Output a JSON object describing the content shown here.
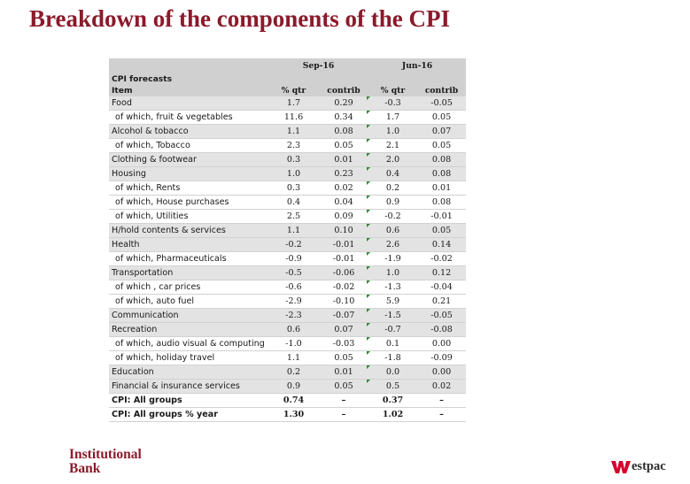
{
  "title": "Breakdown of the components of the CPI",
  "table": {
    "period1": "Sep-16",
    "period2": "Jun-16",
    "section": "CPI forecasts",
    "col_item": "Item",
    "col_qtr": "% qtr",
    "col_contrib": "contrib",
    "rows": [
      {
        "label": "Food",
        "sep_qtr": "1.7",
        "sep_contrib": "0.29",
        "jun_qtr": "-0.3",
        "jun_contrib": "-0.05",
        "kind": "major"
      },
      {
        "label": "of which, fruit & vegetables",
        "sep_qtr": "11.6",
        "sep_contrib": "0.34",
        "jun_qtr": "1.7",
        "jun_contrib": "0.05",
        "kind": "minor"
      },
      {
        "label": "Alcohol & tobacco",
        "sep_qtr": "1.1",
        "sep_contrib": "0.08",
        "jun_qtr": "1.0",
        "jun_contrib": "0.07",
        "kind": "major"
      },
      {
        "label": "of which, Tobacco",
        "sep_qtr": "2.3",
        "sep_contrib": "0.05",
        "jun_qtr": "2.1",
        "jun_contrib": "0.05",
        "kind": "minor"
      },
      {
        "label": "Clothing & footwear",
        "sep_qtr": "0.3",
        "sep_contrib": "0.01",
        "jun_qtr": "2.0",
        "jun_contrib": "0.08",
        "kind": "major"
      },
      {
        "label": "Housing",
        "sep_qtr": "1.0",
        "sep_contrib": "0.23",
        "jun_qtr": "0.4",
        "jun_contrib": "0.08",
        "kind": "major"
      },
      {
        "label": "of which, Rents",
        "sep_qtr": "0.3",
        "sep_contrib": "0.02",
        "jun_qtr": "0.2",
        "jun_contrib": "0.01",
        "kind": "minor"
      },
      {
        "label": "of which, House purchases",
        "sep_qtr": "0.4",
        "sep_contrib": "0.04",
        "jun_qtr": "0.9",
        "jun_contrib": "0.08",
        "kind": "minor"
      },
      {
        "label": "of which, Utilities",
        "sep_qtr": "2.5",
        "sep_contrib": "0.09",
        "jun_qtr": "-0.2",
        "jun_contrib": "-0.01",
        "kind": "minor"
      },
      {
        "label": "H/hold contents & services",
        "sep_qtr": "1.1",
        "sep_contrib": "0.10",
        "jun_qtr": "0.6",
        "jun_contrib": "0.05",
        "kind": "major"
      },
      {
        "label": "Health",
        "sep_qtr": "-0.2",
        "sep_contrib": "-0.01",
        "jun_qtr": "2.6",
        "jun_contrib": "0.14",
        "kind": "major"
      },
      {
        "label": "of which, Pharmaceuticals",
        "sep_qtr": "-0.9",
        "sep_contrib": "-0.01",
        "jun_qtr": "-1.9",
        "jun_contrib": "-0.02",
        "kind": "minor"
      },
      {
        "label": "Transportation",
        "sep_qtr": "-0.5",
        "sep_contrib": "-0.06",
        "jun_qtr": "1.0",
        "jun_contrib": "0.12",
        "kind": "major"
      },
      {
        "label": "of which , car prices",
        "sep_qtr": "-0.6",
        "sep_contrib": "-0.02",
        "jun_qtr": "-1.3",
        "jun_contrib": "-0.04",
        "kind": "minor"
      },
      {
        "label": "of which, auto fuel",
        "sep_qtr": "-2.9",
        "sep_contrib": "-0.10",
        "jun_qtr": "5.9",
        "jun_contrib": "0.21",
        "kind": "minor"
      },
      {
        "label": "Communication",
        "sep_qtr": "-2.3",
        "sep_contrib": "-0.07",
        "jun_qtr": "-1.5",
        "jun_contrib": "-0.05",
        "kind": "major"
      },
      {
        "label": "Recreation",
        "sep_qtr": "0.6",
        "sep_contrib": "0.07",
        "jun_qtr": "-0.7",
        "jun_contrib": "-0.08",
        "kind": "major"
      },
      {
        "label": "of which, audio visual & computing",
        "sep_qtr": "-1.0",
        "sep_contrib": "-0.03",
        "jun_qtr": "0.1",
        "jun_contrib": "0.00",
        "kind": "minor"
      },
      {
        "label": "of which, holiday travel",
        "sep_qtr": "1.1",
        "sep_contrib": "0.05",
        "jun_qtr": "-1.8",
        "jun_contrib": "-0.09",
        "kind": "minor"
      },
      {
        "label": "Education",
        "sep_qtr": "0.2",
        "sep_contrib": "0.01",
        "jun_qtr": "0.0",
        "jun_contrib": "0.00",
        "kind": "major"
      },
      {
        "label": "Financial & insurance services",
        "sep_qtr": "0.9",
        "sep_contrib": "0.05",
        "jun_qtr": "0.5",
        "jun_contrib": "0.02",
        "kind": "major"
      },
      {
        "label": "CPI: All groups",
        "sep_qtr": "0.74",
        "sep_contrib": "–",
        "jun_qtr": "0.37",
        "jun_contrib": "–",
        "kind": "total"
      },
      {
        "label": "CPI: All groups % year",
        "sep_qtr": "1.30",
        "sep_contrib": "–",
        "jun_qtr": "1.02",
        "jun_contrib": "–",
        "kind": "total"
      }
    ]
  },
  "footer": {
    "institutional_line1": "Institutional",
    "institutional_line2": "Bank",
    "westpac": "estpac"
  },
  "colors": {
    "title": "#8b1a2b",
    "header_bg": "#d0d0d0",
    "major_row_bg": "#e3e3e3",
    "westpac_red": "#d5002b",
    "flag_green": "#2a8a2a"
  }
}
